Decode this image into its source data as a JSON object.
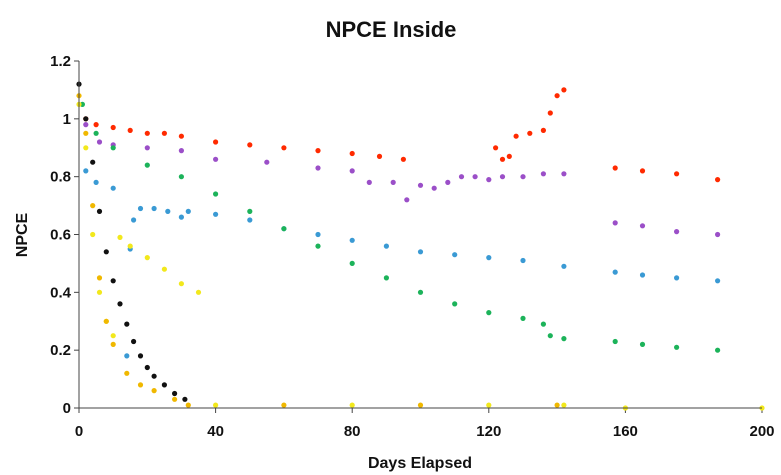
{
  "chart_data": {
    "type": "scatter",
    "title": "NPCE Inside",
    "xlabel": "Days Elapsed",
    "ylabel": "NPCE",
    "xlim": [
      0,
      200
    ],
    "ylim": [
      0,
      1.2
    ],
    "xticks": [
      "0",
      "40",
      "80",
      "120",
      "160",
      "200"
    ],
    "yticks": [
      "0",
      "0.2",
      "0.4",
      "0.6",
      "0.8",
      "1",
      "1.2"
    ],
    "grid": false,
    "legend": "none",
    "series": [
      {
        "color": "#ff2a00",
        "points": [
          [
            2,
            1.0
          ],
          [
            5,
            0.98
          ],
          [
            10,
            0.97
          ],
          [
            15,
            0.96
          ],
          [
            20,
            0.95
          ],
          [
            25,
            0.95
          ],
          [
            30,
            0.94
          ],
          [
            40,
            0.92
          ],
          [
            50,
            0.91
          ],
          [
            60,
            0.9
          ],
          [
            70,
            0.89
          ],
          [
            80,
            0.88
          ],
          [
            88,
            0.87
          ],
          [
            95,
            0.86
          ],
          [
            122,
            0.9
          ],
          [
            124,
            0.86
          ],
          [
            126,
            0.87
          ],
          [
            128,
            0.94
          ],
          [
            132,
            0.95
          ],
          [
            136,
            0.96
          ],
          [
            138,
            1.02
          ],
          [
            140,
            1.08
          ],
          [
            142,
            1.1
          ],
          [
            157,
            0.83
          ],
          [
            165,
            0.82
          ],
          [
            175,
            0.81
          ],
          [
            187,
            0.79
          ]
        ]
      },
      {
        "color": "#9b4fc8",
        "points": [
          [
            2,
            0.98
          ],
          [
            6,
            0.92
          ],
          [
            10,
            0.91
          ],
          [
            20,
            0.9
          ],
          [
            30,
            0.89
          ],
          [
            40,
            0.86
          ],
          [
            55,
            0.85
          ],
          [
            70,
            0.83
          ],
          [
            80,
            0.82
          ],
          [
            85,
            0.78
          ],
          [
            92,
            0.78
          ],
          [
            96,
            0.72
          ],
          [
            100,
            0.77
          ],
          [
            104,
            0.76
          ],
          [
            108,
            0.78
          ],
          [
            112,
            0.8
          ],
          [
            116,
            0.8
          ],
          [
            120,
            0.79
          ],
          [
            124,
            0.8
          ],
          [
            130,
            0.8
          ],
          [
            136,
            0.81
          ],
          [
            142,
            0.81
          ],
          [
            157,
            0.64
          ],
          [
            165,
            0.63
          ],
          [
            175,
            0.61
          ],
          [
            187,
            0.6
          ]
        ]
      },
      {
        "color": "#3a9ad4",
        "points": [
          [
            2,
            0.82
          ],
          [
            5,
            0.78
          ],
          [
            10,
            0.76
          ],
          [
            14,
            0.18
          ],
          [
            15,
            0.55
          ],
          [
            16,
            0.65
          ],
          [
            18,
            0.69
          ],
          [
            22,
            0.69
          ],
          [
            26,
            0.68
          ],
          [
            30,
            0.66
          ],
          [
            32,
            0.68
          ],
          [
            40,
            0.67
          ],
          [
            50,
            0.65
          ],
          [
            60,
            0.62
          ],
          [
            70,
            0.6
          ],
          [
            80,
            0.58
          ],
          [
            90,
            0.56
          ],
          [
            100,
            0.54
          ],
          [
            110,
            0.53
          ],
          [
            120,
            0.52
          ],
          [
            130,
            0.51
          ],
          [
            142,
            0.49
          ],
          [
            157,
            0.47
          ],
          [
            165,
            0.46
          ],
          [
            175,
            0.45
          ],
          [
            187,
            0.44
          ]
        ]
      },
      {
        "color": "#1cb35a",
        "points": [
          [
            1,
            1.05
          ],
          [
            5,
            0.95
          ],
          [
            10,
            0.9
          ],
          [
            20,
            0.84
          ],
          [
            30,
            0.8
          ],
          [
            40,
            0.74
          ],
          [
            50,
            0.68
          ],
          [
            60,
            0.62
          ],
          [
            70,
            0.56
          ],
          [
            80,
            0.5
          ],
          [
            90,
            0.45
          ],
          [
            100,
            0.4
          ],
          [
            110,
            0.36
          ],
          [
            120,
            0.33
          ],
          [
            130,
            0.31
          ],
          [
            136,
            0.29
          ],
          [
            138,
            0.25
          ],
          [
            142,
            0.24
          ],
          [
            157,
            0.23
          ],
          [
            165,
            0.22
          ],
          [
            175,
            0.21
          ],
          [
            187,
            0.2
          ]
        ]
      },
      {
        "color": "#f2e81c",
        "points": [
          [
            0,
            1.05
          ],
          [
            2,
            0.9
          ],
          [
            4,
            0.6
          ],
          [
            6,
            0.4
          ],
          [
            8,
            0.3
          ],
          [
            10,
            0.25
          ],
          [
            12,
            0.59
          ],
          [
            15,
            0.56
          ],
          [
            20,
            0.52
          ],
          [
            25,
            0.48
          ],
          [
            30,
            0.43
          ],
          [
            35,
            0.4
          ],
          [
            40,
            0.01
          ],
          [
            80,
            0.01
          ],
          [
            120,
            0.01
          ],
          [
            142,
            0.01
          ],
          [
            160,
            0.0
          ],
          [
            200,
            0.0
          ]
        ]
      },
      {
        "color": "#f0b800",
        "points": [
          [
            0,
            1.08
          ],
          [
            2,
            0.95
          ],
          [
            4,
            0.7
          ],
          [
            6,
            0.45
          ],
          [
            8,
            0.3
          ],
          [
            10,
            0.22
          ],
          [
            14,
            0.12
          ],
          [
            18,
            0.08
          ],
          [
            22,
            0.06
          ],
          [
            28,
            0.03
          ],
          [
            32,
            0.01
          ],
          [
            60,
            0.01
          ],
          [
            100,
            0.01
          ],
          [
            140,
            0.01
          ]
        ]
      },
      {
        "color": "#111111",
        "points": [
          [
            0,
            1.12
          ],
          [
            2,
            1.0
          ],
          [
            4,
            0.85
          ],
          [
            6,
            0.68
          ],
          [
            8,
            0.54
          ],
          [
            10,
            0.44
          ],
          [
            12,
            0.36
          ],
          [
            14,
            0.29
          ],
          [
            16,
            0.23
          ],
          [
            18,
            0.18
          ],
          [
            20,
            0.14
          ],
          [
            22,
            0.11
          ],
          [
            25,
            0.08
          ],
          [
            28,
            0.05
          ],
          [
            31,
            0.03
          ]
        ]
      }
    ]
  }
}
